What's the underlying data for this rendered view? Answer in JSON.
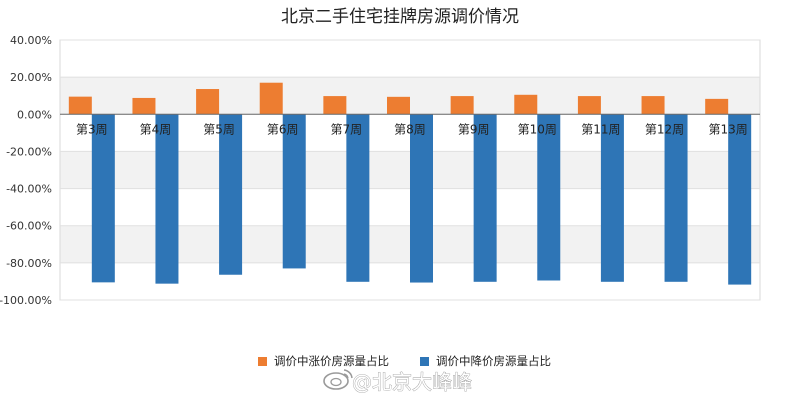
{
  "chart_data": {
    "type": "bar",
    "title": "北京二手住宅挂牌房源调价情况",
    "categories": [
      "第3周",
      "第4周",
      "第5周",
      "第6周",
      "第7周",
      "第8周",
      "第9周",
      "第10周",
      "第11周",
      "第12周",
      "第13周"
    ],
    "series": [
      {
        "name": "调价中涨价房源量占比",
        "color": "#ed7d31",
        "values": [
          9.5,
          8.8,
          13.6,
          17.0,
          9.8,
          9.4,
          9.8,
          10.5,
          9.8,
          9.8,
          8.3
        ]
      },
      {
        "name": "调价中降价房源量占比",
        "color": "#2e75b6",
        "values": [
          -90.5,
          -91.2,
          -86.4,
          -83.0,
          -90.2,
          -90.6,
          -90.2,
          -89.5,
          -90.2,
          -90.2,
          -91.7
        ]
      }
    ],
    "ylim": [
      -100,
      40
    ],
    "yticks": [
      "40.00%",
      "20.00%",
      "0.00%",
      "-20.00%",
      "-40.00%",
      "-60.00%",
      "-80.00%",
      "-100.00%"
    ],
    "grid": true,
    "legend_position": "bottom",
    "xlabel": "",
    "ylabel": ""
  },
  "watermark": {
    "text": "@北京大峰峰",
    "icon": "weibo-logo-icon"
  }
}
